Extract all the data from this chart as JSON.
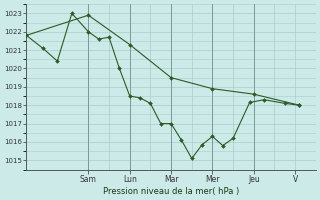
{
  "xlabel": "Pression niveau de la mer( hPa )",
  "bg_color": "#cceae8",
  "grid_color": "#aacccc",
  "line_color": "#2d5a27",
  "ylim": [
    1014.5,
    1023.5
  ],
  "yticks": [
    1015,
    1016,
    1017,
    1018,
    1019,
    1020,
    1021,
    1022,
    1023
  ],
  "day_labels": [
    "Sam",
    "Lun",
    "Mar",
    "Mer",
    "Jeu",
    "V"
  ],
  "day_positions": [
    3,
    5,
    7,
    9,
    11,
    13
  ],
  "xlim": [
    0.0,
    14.0
  ],
  "series1_x": [
    0,
    0.8,
    1.5,
    2.2,
    3.0,
    3.5,
    4.0,
    4.5,
    5.0,
    5.5,
    6.0,
    6.5,
    7.0,
    7.5,
    8.0,
    8.5,
    9.0,
    9.5,
    10.0,
    10.8,
    11.5,
    12.5,
    13.2
  ],
  "series1_y": [
    1021.8,
    1021.1,
    1020.4,
    1023.0,
    1022.0,
    1021.6,
    1021.7,
    1020.0,
    1018.5,
    1018.4,
    1018.1,
    1017.0,
    1017.0,
    1016.1,
    1015.1,
    1015.85,
    1016.3,
    1015.8,
    1016.2,
    1018.15,
    1018.3,
    1018.1,
    1018.0
  ],
  "series2_x": [
    0,
    3.0,
    5.0,
    7.0,
    9.0,
    11.0,
    13.2
  ],
  "series2_y": [
    1021.8,
    1022.9,
    1021.3,
    1019.5,
    1018.9,
    1018.6,
    1018.0
  ]
}
